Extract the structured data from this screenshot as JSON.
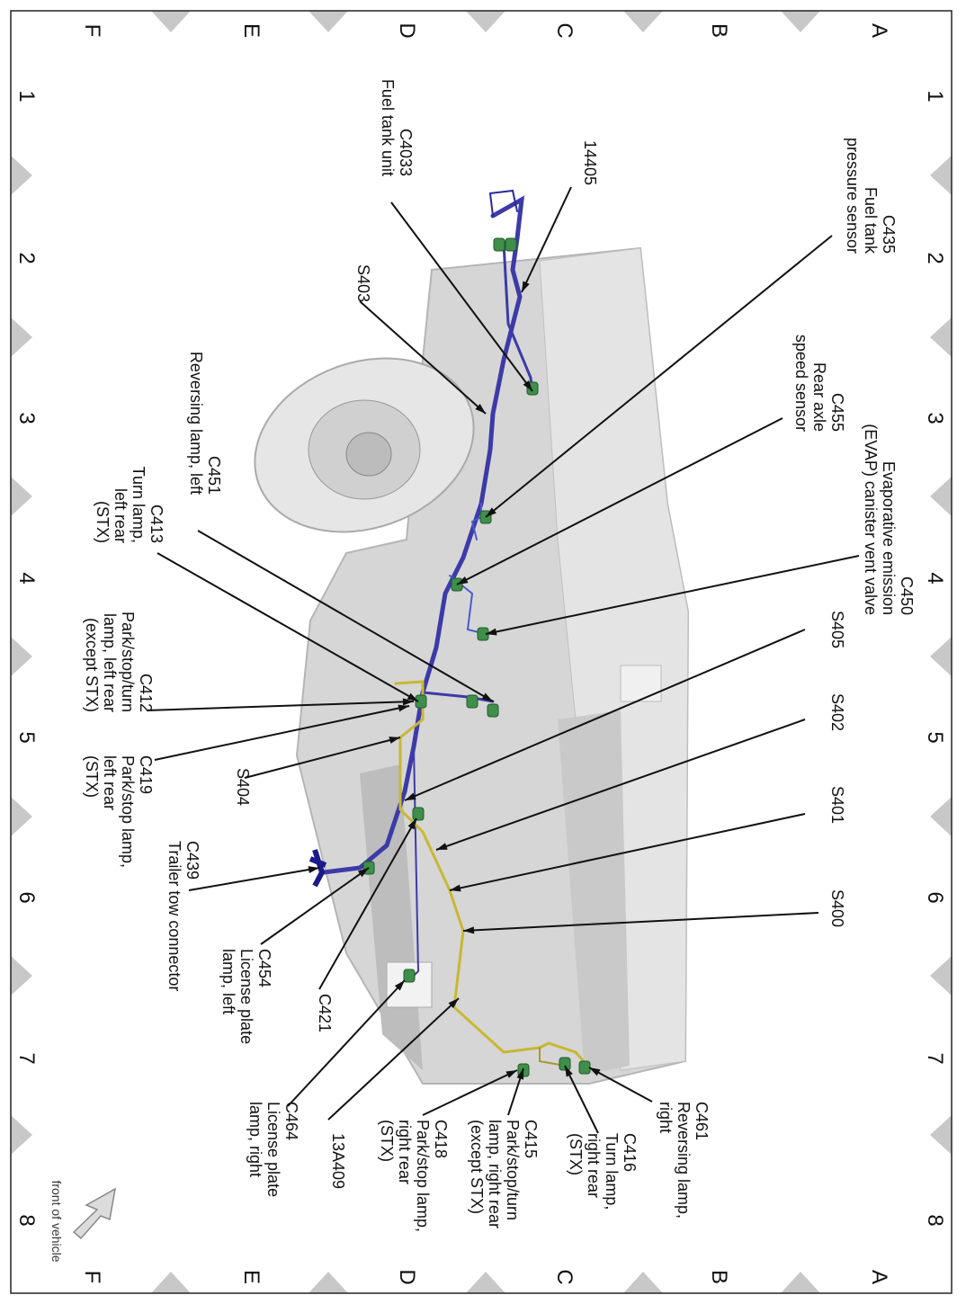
{
  "grid": {
    "rows": [
      "A",
      "B",
      "C",
      "D",
      "E",
      "F"
    ],
    "columns": [
      "1",
      "2",
      "3",
      "4",
      "5",
      "6",
      "7",
      "8"
    ]
  },
  "orientation": {
    "label": "front of vehicle",
    "icon": "arrow-icon"
  },
  "colors": {
    "harness_main": "#3d3aa8",
    "harness_lamp": "#c8b832",
    "connector": "#3f8f4a",
    "body": "#d4d4d4"
  },
  "callouts": [
    {
      "id": "C435",
      "lines": [
        "C435",
        "Fuel tank",
        "pressure sensor"
      ]
    },
    {
      "id": "14405",
      "lines": [
        "14405"
      ]
    },
    {
      "id": "C4033",
      "lines": [
        "C4033",
        "Fuel tank unit"
      ]
    },
    {
      "id": "S403",
      "lines": [
        "S403"
      ]
    },
    {
      "id": "C455",
      "lines": [
        "C455",
        "Rear axle",
        "speed sensor"
      ]
    },
    {
      "id": "C450",
      "lines": [
        "C450",
        "Evaporative emission",
        "(EVAP) canister vent valve"
      ]
    },
    {
      "id": "C451",
      "lines": [
        "C451",
        "Reversing lamp, left"
      ]
    },
    {
      "id": "C413",
      "lines": [
        "C413",
        "Turn lamp,",
        "left rear",
        "(STX)"
      ]
    },
    {
      "id": "C412",
      "lines": [
        "C412",
        "Park/stop/turn",
        "lamp, left rear",
        "(except STX)"
      ]
    },
    {
      "id": "S405",
      "lines": [
        "S405"
      ]
    },
    {
      "id": "S402",
      "lines": [
        "S402"
      ]
    },
    {
      "id": "S401",
      "lines": [
        "S401"
      ]
    },
    {
      "id": "S400",
      "lines": [
        "S400"
      ]
    },
    {
      "id": "C419",
      "lines": [
        "C419",
        "Park/stop lamp,",
        "left rear",
        "(STX)"
      ]
    },
    {
      "id": "S404",
      "lines": [
        "S404"
      ]
    },
    {
      "id": "C439",
      "lines": [
        "C439",
        "Trailer tow connector"
      ]
    },
    {
      "id": "C454",
      "lines": [
        "C454",
        "License plate",
        "lamp, left"
      ]
    },
    {
      "id": "C421",
      "lines": [
        "C421"
      ]
    },
    {
      "id": "C464",
      "lines": [
        "C464",
        "License plate",
        "lamp, right"
      ]
    },
    {
      "id": "13A409",
      "lines": [
        "13A409"
      ]
    },
    {
      "id": "C418",
      "lines": [
        "C418",
        "Park/stop lamp,",
        "right rear",
        "(STX)"
      ]
    },
    {
      "id": "C415",
      "lines": [
        "C415",
        "Park/stop/turn",
        "lamp, right rear",
        "(except STX)"
      ]
    },
    {
      "id": "C416",
      "lines": [
        "C416",
        "Turn lamp,",
        "right rear",
        "(STX)"
      ]
    },
    {
      "id": "C461",
      "lines": [
        "C461",
        "Reversing lamp,",
        "right"
      ]
    }
  ]
}
